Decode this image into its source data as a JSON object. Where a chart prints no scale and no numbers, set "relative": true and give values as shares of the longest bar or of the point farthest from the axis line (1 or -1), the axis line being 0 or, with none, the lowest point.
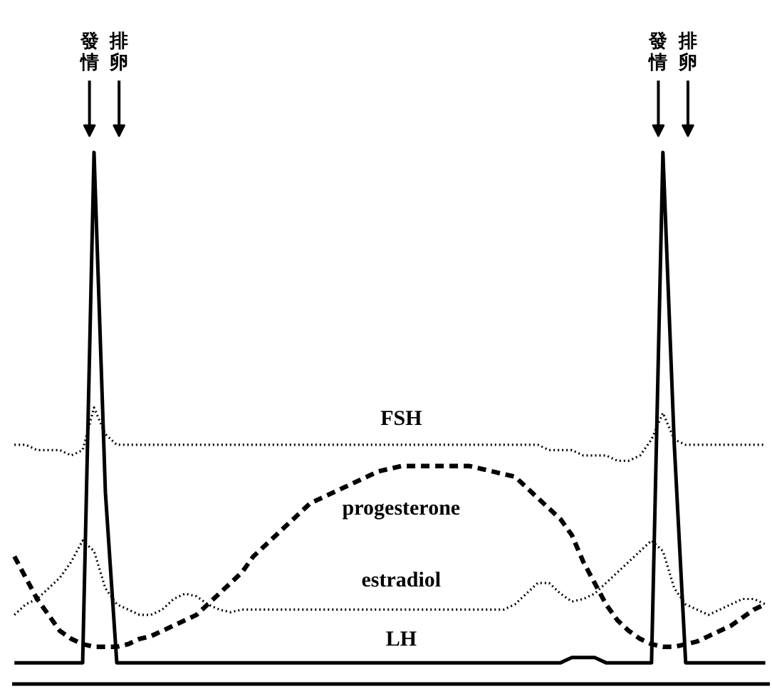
{
  "chart_data": {
    "type": "line",
    "relative": true,
    "categories": [
      null,
      null,
      null,
      null,
      null,
      null,
      null,
      null,
      null,
      null,
      null,
      null,
      null,
      null,
      null,
      null,
      null,
      null,
      null,
      null,
      null,
      null,
      null,
      null,
      null,
      null,
      null,
      null,
      null,
      null,
      null,
      null,
      null,
      null,
      null,
      null,
      null,
      null,
      null,
      null,
      null,
      null,
      null,
      null,
      null,
      null,
      null,
      null,
      null,
      null,
      null,
      null,
      null,
      null,
      null,
      null,
      null,
      null,
      null,
      null,
      null,
      null,
      null,
      null,
      null,
      null,
      null
    ],
    "series": [
      {
        "name": "FSH",
        "color": "#000000",
        "line_style": "dotted",
        "values": [
          0.45,
          0.45,
          0.44,
          0.44,
          0.44,
          0.43,
          0.44,
          0.52,
          0.47,
          0.45,
          0.45,
          0.45,
          0.45,
          0.45,
          0.45,
          0.45,
          0.45,
          0.45,
          0.45,
          0.45,
          0.45,
          0.45,
          0.45,
          0.45,
          0.45,
          0.45,
          0.45,
          0.45,
          0.45,
          0.45,
          0.45,
          0.45,
          0.45,
          0.45,
          0.45,
          0.45,
          0.45,
          0.45,
          0.45,
          0.45,
          0.45,
          0.45,
          0.45,
          0.45,
          0.45,
          0.45,
          0.45,
          0.44,
          0.44,
          0.44,
          0.43,
          0.43,
          0.43,
          0.42,
          0.42,
          0.43,
          0.46,
          0.51,
          0.46,
          0.45,
          0.45,
          0.45,
          0.45,
          0.45,
          0.45,
          0.45,
          0.45
        ]
      },
      {
        "name": "progesterone",
        "color": "#000000",
        "line_style": "dashed",
        "values": [
          0.24,
          0.2,
          0.16,
          0.13,
          0.1,
          0.085,
          0.075,
          0.07,
          0.07,
          0.07,
          0.075,
          0.085,
          0.09,
          0.1,
          0.11,
          0.12,
          0.13,
          0.15,
          0.17,
          0.19,
          0.21,
          0.24,
          0.26,
          0.28,
          0.3,
          0.32,
          0.34,
          0.35,
          0.36,
          0.37,
          0.38,
          0.39,
          0.4,
          0.405,
          0.41,
          0.41,
          0.41,
          0.41,
          0.41,
          0.41,
          0.41,
          0.405,
          0.4,
          0.395,
          0.39,
          0.37,
          0.35,
          0.33,
          0.31,
          0.28,
          0.23,
          0.19,
          0.15,
          0.12,
          0.1,
          0.085,
          0.075,
          0.07,
          0.07,
          0.075,
          0.08,
          0.09,
          0.1,
          0.11,
          0.125,
          0.14,
          0.15
        ]
      },
      {
        "name": "estradiol",
        "color": "#000000",
        "line_style": "dotted",
        "values": [
          0.13,
          0.15,
          0.16,
          0.18,
          0.2,
          0.23,
          0.27,
          0.25,
          0.18,
          0.15,
          0.14,
          0.13,
          0.13,
          0.14,
          0.16,
          0.17,
          0.165,
          0.15,
          0.14,
          0.135,
          0.14,
          0.14,
          0.14,
          0.14,
          0.14,
          0.14,
          0.14,
          0.14,
          0.14,
          0.14,
          0.14,
          0.14,
          0.14,
          0.14,
          0.14,
          0.14,
          0.14,
          0.14,
          0.14,
          0.14,
          0.14,
          0.14,
          0.14,
          0.14,
          0.15,
          0.17,
          0.19,
          0.19,
          0.17,
          0.155,
          0.16,
          0.17,
          0.19,
          0.21,
          0.23,
          0.25,
          0.27,
          0.25,
          0.18,
          0.15,
          0.14,
          0.13,
          0.14,
          0.15,
          0.16,
          0.16,
          0.15
        ]
      },
      {
        "name": "LH",
        "color": "#000000",
        "line_style": "solid",
        "values": [
          0.04,
          0.04,
          0.04,
          0.04,
          0.04,
          0.04,
          0.04,
          1.0,
          0.36,
          0.04,
          0.04,
          0.04,
          0.04,
          0.04,
          0.04,
          0.04,
          0.04,
          0.04,
          0.04,
          0.04,
          0.04,
          0.04,
          0.04,
          0.04,
          0.04,
          0.04,
          0.04,
          0.04,
          0.04,
          0.04,
          0.04,
          0.04,
          0.04,
          0.04,
          0.04,
          0.04,
          0.04,
          0.04,
          0.04,
          0.04,
          0.04,
          0.04,
          0.04,
          0.04,
          0.04,
          0.04,
          0.04,
          0.04,
          0.04,
          0.05,
          0.05,
          0.05,
          0.04,
          0.04,
          0.04,
          0.04,
          0.04,
          1.0,
          0.45,
          0.04,
          0.04,
          0.04,
          0.04,
          0.04,
          0.04,
          0.04,
          0.04
        ]
      }
    ],
    "annotations": [
      "發情",
      "排卵",
      "發情",
      "排卵"
    ],
    "grid": false
  }
}
